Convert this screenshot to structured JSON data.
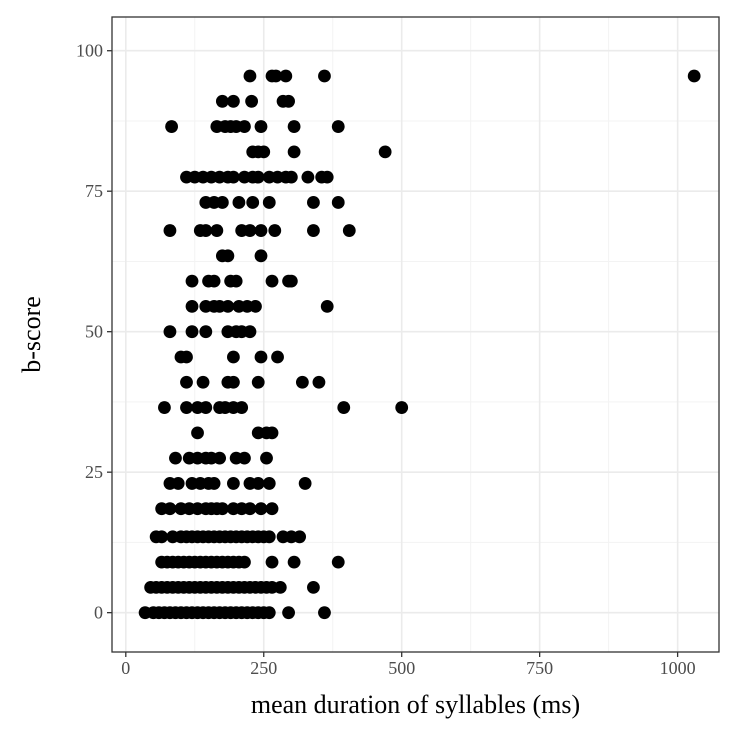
{
  "chart_data": {
    "type": "scatter",
    "xlabel": "mean duration of syllables (ms)",
    "ylabel": "b-score",
    "xlim": [
      -25,
      1075
    ],
    "ylim": [
      -7,
      106
    ],
    "x_ticks": [
      0,
      250,
      500,
      750,
      1000
    ],
    "y_ticks": [
      0,
      25,
      50,
      75,
      100
    ],
    "x_tick_labels": [
      "0",
      "250",
      "500",
      "750",
      "1000"
    ],
    "y_tick_labels": [
      "0",
      "25",
      "50",
      "75",
      "100"
    ],
    "grid": true,
    "legend": "none",
    "point_color": "#000000",
    "points": [
      [
        1030,
        95.5
      ],
      [
        225,
        95.5
      ],
      [
        265,
        95.5
      ],
      [
        290,
        95.5
      ],
      [
        360,
        95.5
      ],
      [
        272,
        95.5
      ],
      [
        175,
        91
      ],
      [
        195,
        91
      ],
      [
        228,
        91
      ],
      [
        285,
        91
      ],
      [
        295,
        91
      ],
      [
        83,
        86.5
      ],
      [
        165,
        86.5
      ],
      [
        180,
        86.5
      ],
      [
        190,
        86.5
      ],
      [
        200,
        86.5
      ],
      [
        215,
        86.5
      ],
      [
        245,
        86.5
      ],
      [
        305,
        86.5
      ],
      [
        385,
        86.5
      ],
      [
        230,
        82
      ],
      [
        240,
        82
      ],
      [
        250,
        82
      ],
      [
        305,
        82
      ],
      [
        470,
        82
      ],
      [
        110,
        77.5
      ],
      [
        125,
        77.5
      ],
      [
        140,
        77.5
      ],
      [
        155,
        77.5
      ],
      [
        170,
        77.5
      ],
      [
        185,
        77.5
      ],
      [
        195,
        77.5
      ],
      [
        215,
        77.5
      ],
      [
        230,
        77.5
      ],
      [
        240,
        77.5
      ],
      [
        260,
        77.5
      ],
      [
        275,
        77.5
      ],
      [
        290,
        77.5
      ],
      [
        300,
        77.5
      ],
      [
        330,
        77.5
      ],
      [
        355,
        77.5
      ],
      [
        365,
        77.5
      ],
      [
        145,
        73
      ],
      [
        160,
        73
      ],
      [
        175,
        73
      ],
      [
        205,
        73
      ],
      [
        230,
        73
      ],
      [
        260,
        73
      ],
      [
        340,
        73
      ],
      [
        385,
        73
      ],
      [
        80,
        68
      ],
      [
        135,
        68
      ],
      [
        145,
        68
      ],
      [
        165,
        68
      ],
      [
        210,
        68
      ],
      [
        225,
        68
      ],
      [
        245,
        68
      ],
      [
        270,
        68
      ],
      [
        340,
        68
      ],
      [
        405,
        68
      ],
      [
        175,
        63.5
      ],
      [
        185,
        63.5
      ],
      [
        245,
        63.5
      ],
      [
        120,
        59
      ],
      [
        150,
        59
      ],
      [
        160,
        59
      ],
      [
        190,
        59
      ],
      [
        200,
        59
      ],
      [
        265,
        59
      ],
      [
        295,
        59
      ],
      [
        300,
        59
      ],
      [
        120,
        54.5
      ],
      [
        145,
        54.5
      ],
      [
        160,
        54.5
      ],
      [
        170,
        54.5
      ],
      [
        185,
        54.5
      ],
      [
        205,
        54.5
      ],
      [
        220,
        54.5
      ],
      [
        235,
        54.5
      ],
      [
        365,
        54.5
      ],
      [
        80,
        50
      ],
      [
        120,
        50
      ],
      [
        145,
        50
      ],
      [
        185,
        50
      ],
      [
        200,
        50
      ],
      [
        210,
        50
      ],
      [
        225,
        50
      ],
      [
        100,
        45.5
      ],
      [
        110,
        45.5
      ],
      [
        195,
        45.5
      ],
      [
        245,
        45.5
      ],
      [
        275,
        45.5
      ],
      [
        110,
        41
      ],
      [
        140,
        41
      ],
      [
        185,
        41
      ],
      [
        195,
        41
      ],
      [
        240,
        41
      ],
      [
        320,
        41
      ],
      [
        350,
        41
      ],
      [
        70,
        36.5
      ],
      [
        110,
        36.5
      ],
      [
        130,
        36.5
      ],
      [
        145,
        36.5
      ],
      [
        170,
        36.5
      ],
      [
        180,
        36.5
      ],
      [
        195,
        36.5
      ],
      [
        210,
        36.5
      ],
      [
        395,
        36.5
      ],
      [
        500,
        36.5
      ],
      [
        130,
        32
      ],
      [
        240,
        32
      ],
      [
        255,
        32
      ],
      [
        265,
        32
      ],
      [
        90,
        27.5
      ],
      [
        115,
        27.5
      ],
      [
        130,
        27.5
      ],
      [
        145,
        27.5
      ],
      [
        155,
        27.5
      ],
      [
        170,
        27.5
      ],
      [
        200,
        27.5
      ],
      [
        215,
        27.5
      ],
      [
        255,
        27.5
      ],
      [
        80,
        23
      ],
      [
        95,
        23
      ],
      [
        120,
        23
      ],
      [
        135,
        23
      ],
      [
        150,
        23
      ],
      [
        160,
        23
      ],
      [
        195,
        23
      ],
      [
        225,
        23
      ],
      [
        240,
        23
      ],
      [
        260,
        23
      ],
      [
        325,
        23
      ],
      [
        65,
        18.5
      ],
      [
        80,
        18.5
      ],
      [
        100,
        18.5
      ],
      [
        115,
        18.5
      ],
      [
        130,
        18.5
      ],
      [
        145,
        18.5
      ],
      [
        155,
        18.5
      ],
      [
        165,
        18.5
      ],
      [
        175,
        18.5
      ],
      [
        195,
        18.5
      ],
      [
        210,
        18.5
      ],
      [
        225,
        18.5
      ],
      [
        245,
        18.5
      ],
      [
        265,
        18.5
      ],
      [
        55,
        13.5
      ],
      [
        65,
        13.5
      ],
      [
        85,
        13.5
      ],
      [
        100,
        13.5
      ],
      [
        110,
        13.5
      ],
      [
        120,
        13.5
      ],
      [
        130,
        13.5
      ],
      [
        140,
        13.5
      ],
      [
        150,
        13.5
      ],
      [
        160,
        13.5
      ],
      [
        170,
        13.5
      ],
      [
        180,
        13.5
      ],
      [
        190,
        13.5
      ],
      [
        200,
        13.5
      ],
      [
        210,
        13.5
      ],
      [
        220,
        13.5
      ],
      [
        230,
        13.5
      ],
      [
        240,
        13.5
      ],
      [
        250,
        13.5
      ],
      [
        260,
        13.5
      ],
      [
        285,
        13.5
      ],
      [
        300,
        13.5
      ],
      [
        315,
        13.5
      ],
      [
        65,
        9
      ],
      [
        75,
        9
      ],
      [
        85,
        9
      ],
      [
        95,
        9
      ],
      [
        105,
        9
      ],
      [
        115,
        9
      ],
      [
        125,
        9
      ],
      [
        135,
        9
      ],
      [
        145,
        9
      ],
      [
        155,
        9
      ],
      [
        165,
        9
      ],
      [
        175,
        9
      ],
      [
        185,
        9
      ],
      [
        195,
        9
      ],
      [
        205,
        9
      ],
      [
        215,
        9
      ],
      [
        265,
        9
      ],
      [
        305,
        9
      ],
      [
        385,
        9
      ],
      [
        45,
        4.5
      ],
      [
        55,
        4.5
      ],
      [
        65,
        4.5
      ],
      [
        75,
        4.5
      ],
      [
        85,
        4.5
      ],
      [
        95,
        4.5
      ],
      [
        105,
        4.5
      ],
      [
        115,
        4.5
      ],
      [
        125,
        4.5
      ],
      [
        135,
        4.5
      ],
      [
        145,
        4.5
      ],
      [
        155,
        4.5
      ],
      [
        165,
        4.5
      ],
      [
        175,
        4.5
      ],
      [
        185,
        4.5
      ],
      [
        195,
        4.5
      ],
      [
        205,
        4.5
      ],
      [
        215,
        4.5
      ],
      [
        225,
        4.5
      ],
      [
        235,
        4.5
      ],
      [
        245,
        4.5
      ],
      [
        255,
        4.5
      ],
      [
        265,
        4.5
      ],
      [
        280,
        4.5
      ],
      [
        340,
        4.5
      ],
      [
        35,
        0
      ],
      [
        50,
        0
      ],
      [
        60,
        0
      ],
      [
        70,
        0
      ],
      [
        80,
        0
      ],
      [
        90,
        0
      ],
      [
        100,
        0
      ],
      [
        110,
        0
      ],
      [
        120,
        0
      ],
      [
        130,
        0
      ],
      [
        140,
        0
      ],
      [
        150,
        0
      ],
      [
        160,
        0
      ],
      [
        170,
        0
      ],
      [
        180,
        0
      ],
      [
        190,
        0
      ],
      [
        200,
        0
      ],
      [
        210,
        0
      ],
      [
        220,
        0
      ],
      [
        230,
        0
      ],
      [
        240,
        0
      ],
      [
        250,
        0
      ],
      [
        260,
        0
      ],
      [
        295,
        0
      ],
      [
        360,
        0
      ]
    ]
  }
}
